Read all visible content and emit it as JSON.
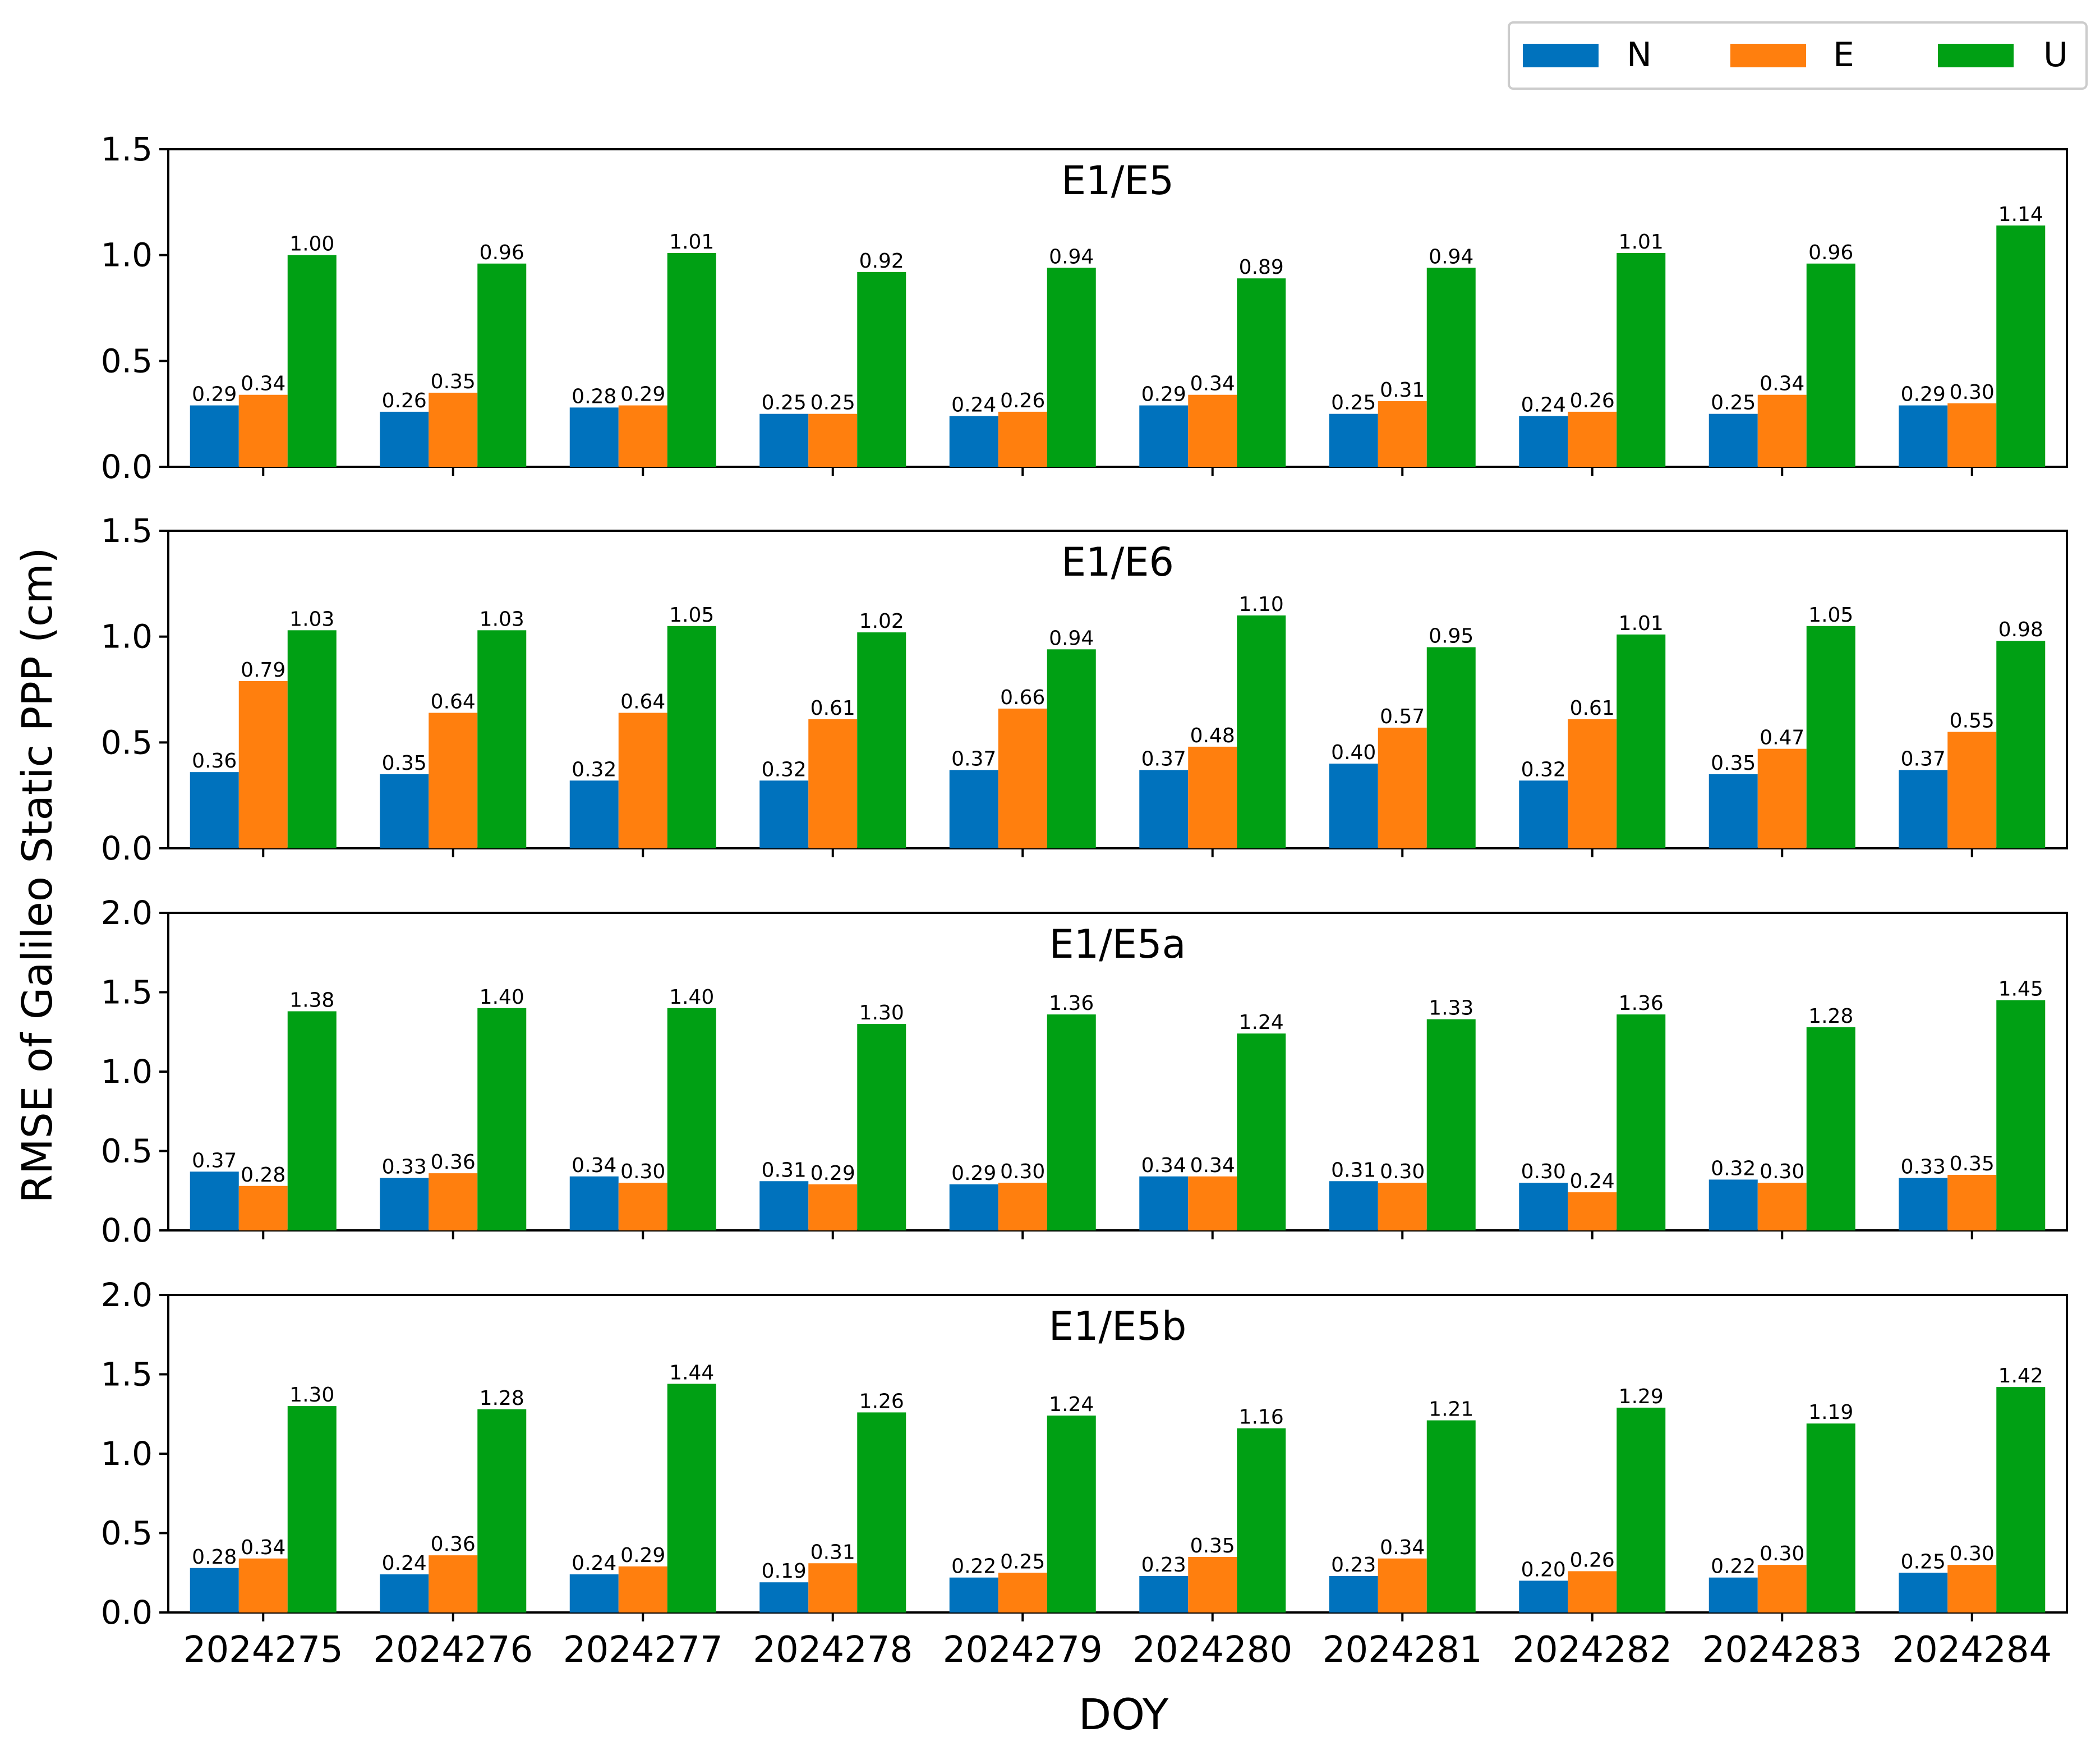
{
  "figure": {
    "ylabel": "RMSE of Galileo Static PPP (cm)",
    "xlabel": "DOY"
  },
  "legend": {
    "placement": "top-right",
    "entries": [
      {
        "name": "N",
        "color": "#0072BD"
      },
      {
        "name": "E",
        "color": "#FF7F0E"
      },
      {
        "name": "U",
        "color": "#00A014"
      }
    ]
  },
  "chart_data": [
    {
      "type": "bar",
      "title": "E1/E5",
      "categories": [
        "2024275",
        "2024276",
        "2024277",
        "2024278",
        "2024279",
        "2024280",
        "2024281",
        "2024282",
        "2024283",
        "2024284"
      ],
      "ylim": [
        0,
        1.5
      ],
      "yticks": [
        "0.0",
        "0.5",
        "1.0",
        "1.5"
      ],
      "series": [
        {
          "name": "N",
          "values": [
            0.29,
            0.26,
            0.28,
            0.25,
            0.24,
            0.29,
            0.25,
            0.24,
            0.25,
            0.29
          ]
        },
        {
          "name": "E",
          "values": [
            0.34,
            0.35,
            0.29,
            0.25,
            0.26,
            0.34,
            0.31,
            0.26,
            0.34,
            0.3
          ]
        },
        {
          "name": "U",
          "values": [
            1.0,
            0.96,
            1.01,
            0.92,
            0.94,
            0.89,
            0.94,
            1.01,
            0.96,
            1.14
          ]
        }
      ]
    },
    {
      "type": "bar",
      "title": "E1/E6",
      "categories": [
        "2024275",
        "2024276",
        "2024277",
        "2024278",
        "2024279",
        "2024280",
        "2024281",
        "2024282",
        "2024283",
        "2024284"
      ],
      "ylim": [
        0,
        1.5
      ],
      "yticks": [
        "0.0",
        "0.5",
        "1.0",
        "1.5"
      ],
      "series": [
        {
          "name": "N",
          "values": [
            0.36,
            0.35,
            0.32,
            0.32,
            0.37,
            0.37,
            0.4,
            0.32,
            0.35,
            0.37
          ]
        },
        {
          "name": "E",
          "values": [
            0.79,
            0.64,
            0.64,
            0.61,
            0.66,
            0.48,
            0.57,
            0.61,
            0.47,
            0.55
          ]
        },
        {
          "name": "U",
          "values": [
            1.03,
            1.03,
            1.05,
            1.02,
            0.94,
            1.1,
            0.95,
            1.01,
            1.05,
            0.98
          ]
        }
      ]
    },
    {
      "type": "bar",
      "title": "E1/E5a",
      "categories": [
        "2024275",
        "2024276",
        "2024277",
        "2024278",
        "2024279",
        "2024280",
        "2024281",
        "2024282",
        "2024283",
        "2024284"
      ],
      "ylim": [
        0,
        2.0
      ],
      "yticks": [
        "0.0",
        "0.5",
        "1.0",
        "1.5",
        "2.0"
      ],
      "series": [
        {
          "name": "N",
          "values": [
            0.37,
            0.33,
            0.34,
            0.31,
            0.29,
            0.34,
            0.31,
            0.3,
            0.32,
            0.33
          ]
        },
        {
          "name": "E",
          "values": [
            0.28,
            0.36,
            0.3,
            0.29,
            0.3,
            0.34,
            0.3,
            0.24,
            0.3,
            0.35
          ]
        },
        {
          "name": "U",
          "values": [
            1.38,
            1.4,
            1.4,
            1.3,
            1.36,
            1.24,
            1.33,
            1.36,
            1.28,
            1.45
          ]
        }
      ]
    },
    {
      "type": "bar",
      "title": "E1/E5b",
      "categories": [
        "2024275",
        "2024276",
        "2024277",
        "2024278",
        "2024279",
        "2024280",
        "2024281",
        "2024282",
        "2024283",
        "2024284"
      ],
      "ylim": [
        0,
        2.0
      ],
      "yticks": [
        "0.0",
        "0.5",
        "1.0",
        "1.5",
        "2.0"
      ],
      "series": [
        {
          "name": "N",
          "values": [
            0.28,
            0.24,
            0.24,
            0.19,
            0.22,
            0.23,
            0.23,
            0.2,
            0.22,
            0.25
          ]
        },
        {
          "name": "E",
          "values": [
            0.34,
            0.36,
            0.29,
            0.31,
            0.25,
            0.35,
            0.34,
            0.26,
            0.3,
            0.3
          ]
        },
        {
          "name": "U",
          "values": [
            1.3,
            1.28,
            1.44,
            1.26,
            1.24,
            1.16,
            1.21,
            1.29,
            1.19,
            1.42
          ]
        }
      ]
    }
  ]
}
